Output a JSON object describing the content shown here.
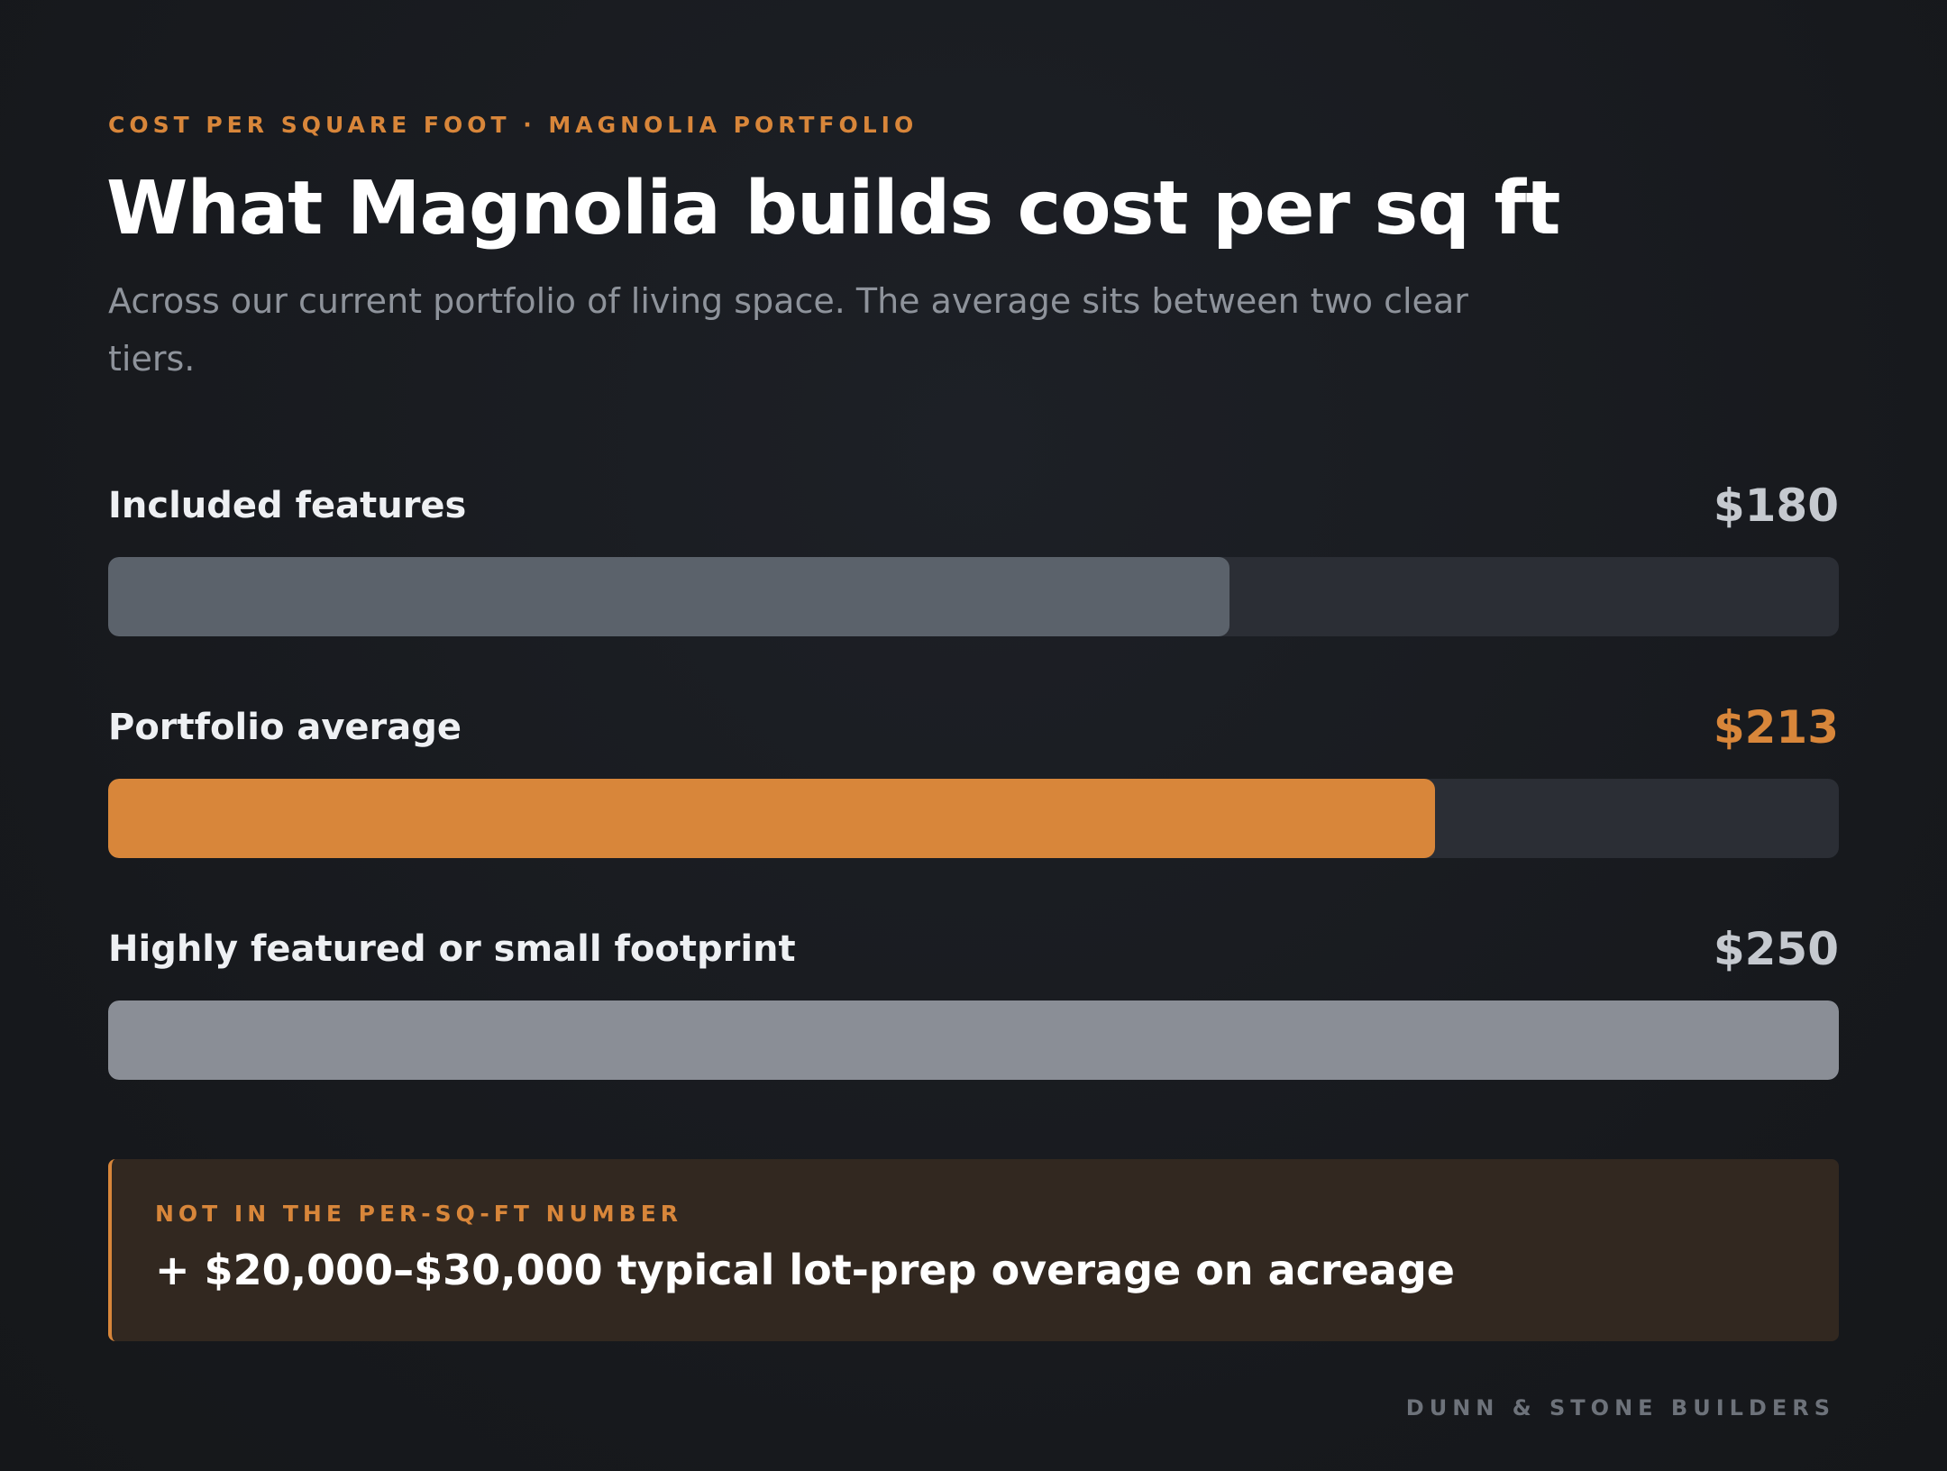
{
  "header": {
    "eyebrow": "COST PER SQUARE FOOT · MAGNOLIA PORTFOLIO",
    "title": "What Magnolia builds cost per sq ft",
    "subtitle": "Across our current portfolio of living space. The average sits between two clear tiers."
  },
  "chart_data": {
    "type": "bar",
    "orientation": "horizontal",
    "categories": [
      "Included features",
      "Portfolio average",
      "Highly featured or small footprint"
    ],
    "values": [
      180,
      213,
      250
    ],
    "value_labels": [
      "$180",
      "$213",
      "$250"
    ],
    "xlim": [
      0,
      250
    ],
    "grid": false,
    "colors": [
      "#5b626b",
      "#d8863a",
      "#8a8e96"
    ],
    "track_color": "#2b2e35"
  },
  "note": {
    "label": "NOT IN THE PER-SQ-FT NUMBER",
    "text": "+ $20,000–$30,000 typical lot-prep overage on acreage"
  },
  "footer": {
    "brand": "DUNN & STONE BUILDERS"
  },
  "colors": {
    "accent": "#d8863a",
    "background": "#17191d"
  }
}
